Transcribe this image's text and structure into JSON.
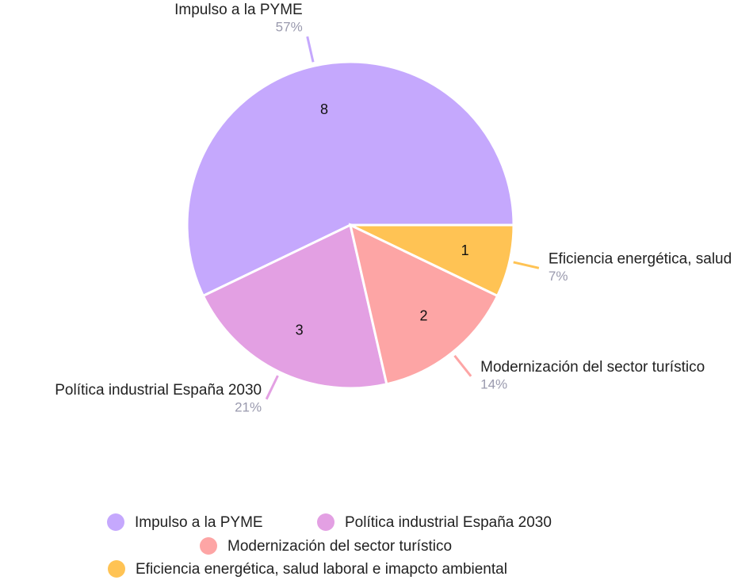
{
  "chart_data": {
    "type": "pie",
    "categories": [
      "Impulso a la PYME",
      "Política industrial España 2030",
      "Modernización del sector turístico",
      "Eficiencia energética, salud laboral e imapcto ambiental"
    ],
    "values": [
      8,
      3,
      2,
      1
    ],
    "percent_labels": [
      "57%",
      "21%",
      "14%",
      "7%"
    ],
    "colors": [
      "#c5a8fd",
      "#e3a0e3",
      "#fda5a5",
      "#ffc354"
    ],
    "legend": "bottom"
  }
}
